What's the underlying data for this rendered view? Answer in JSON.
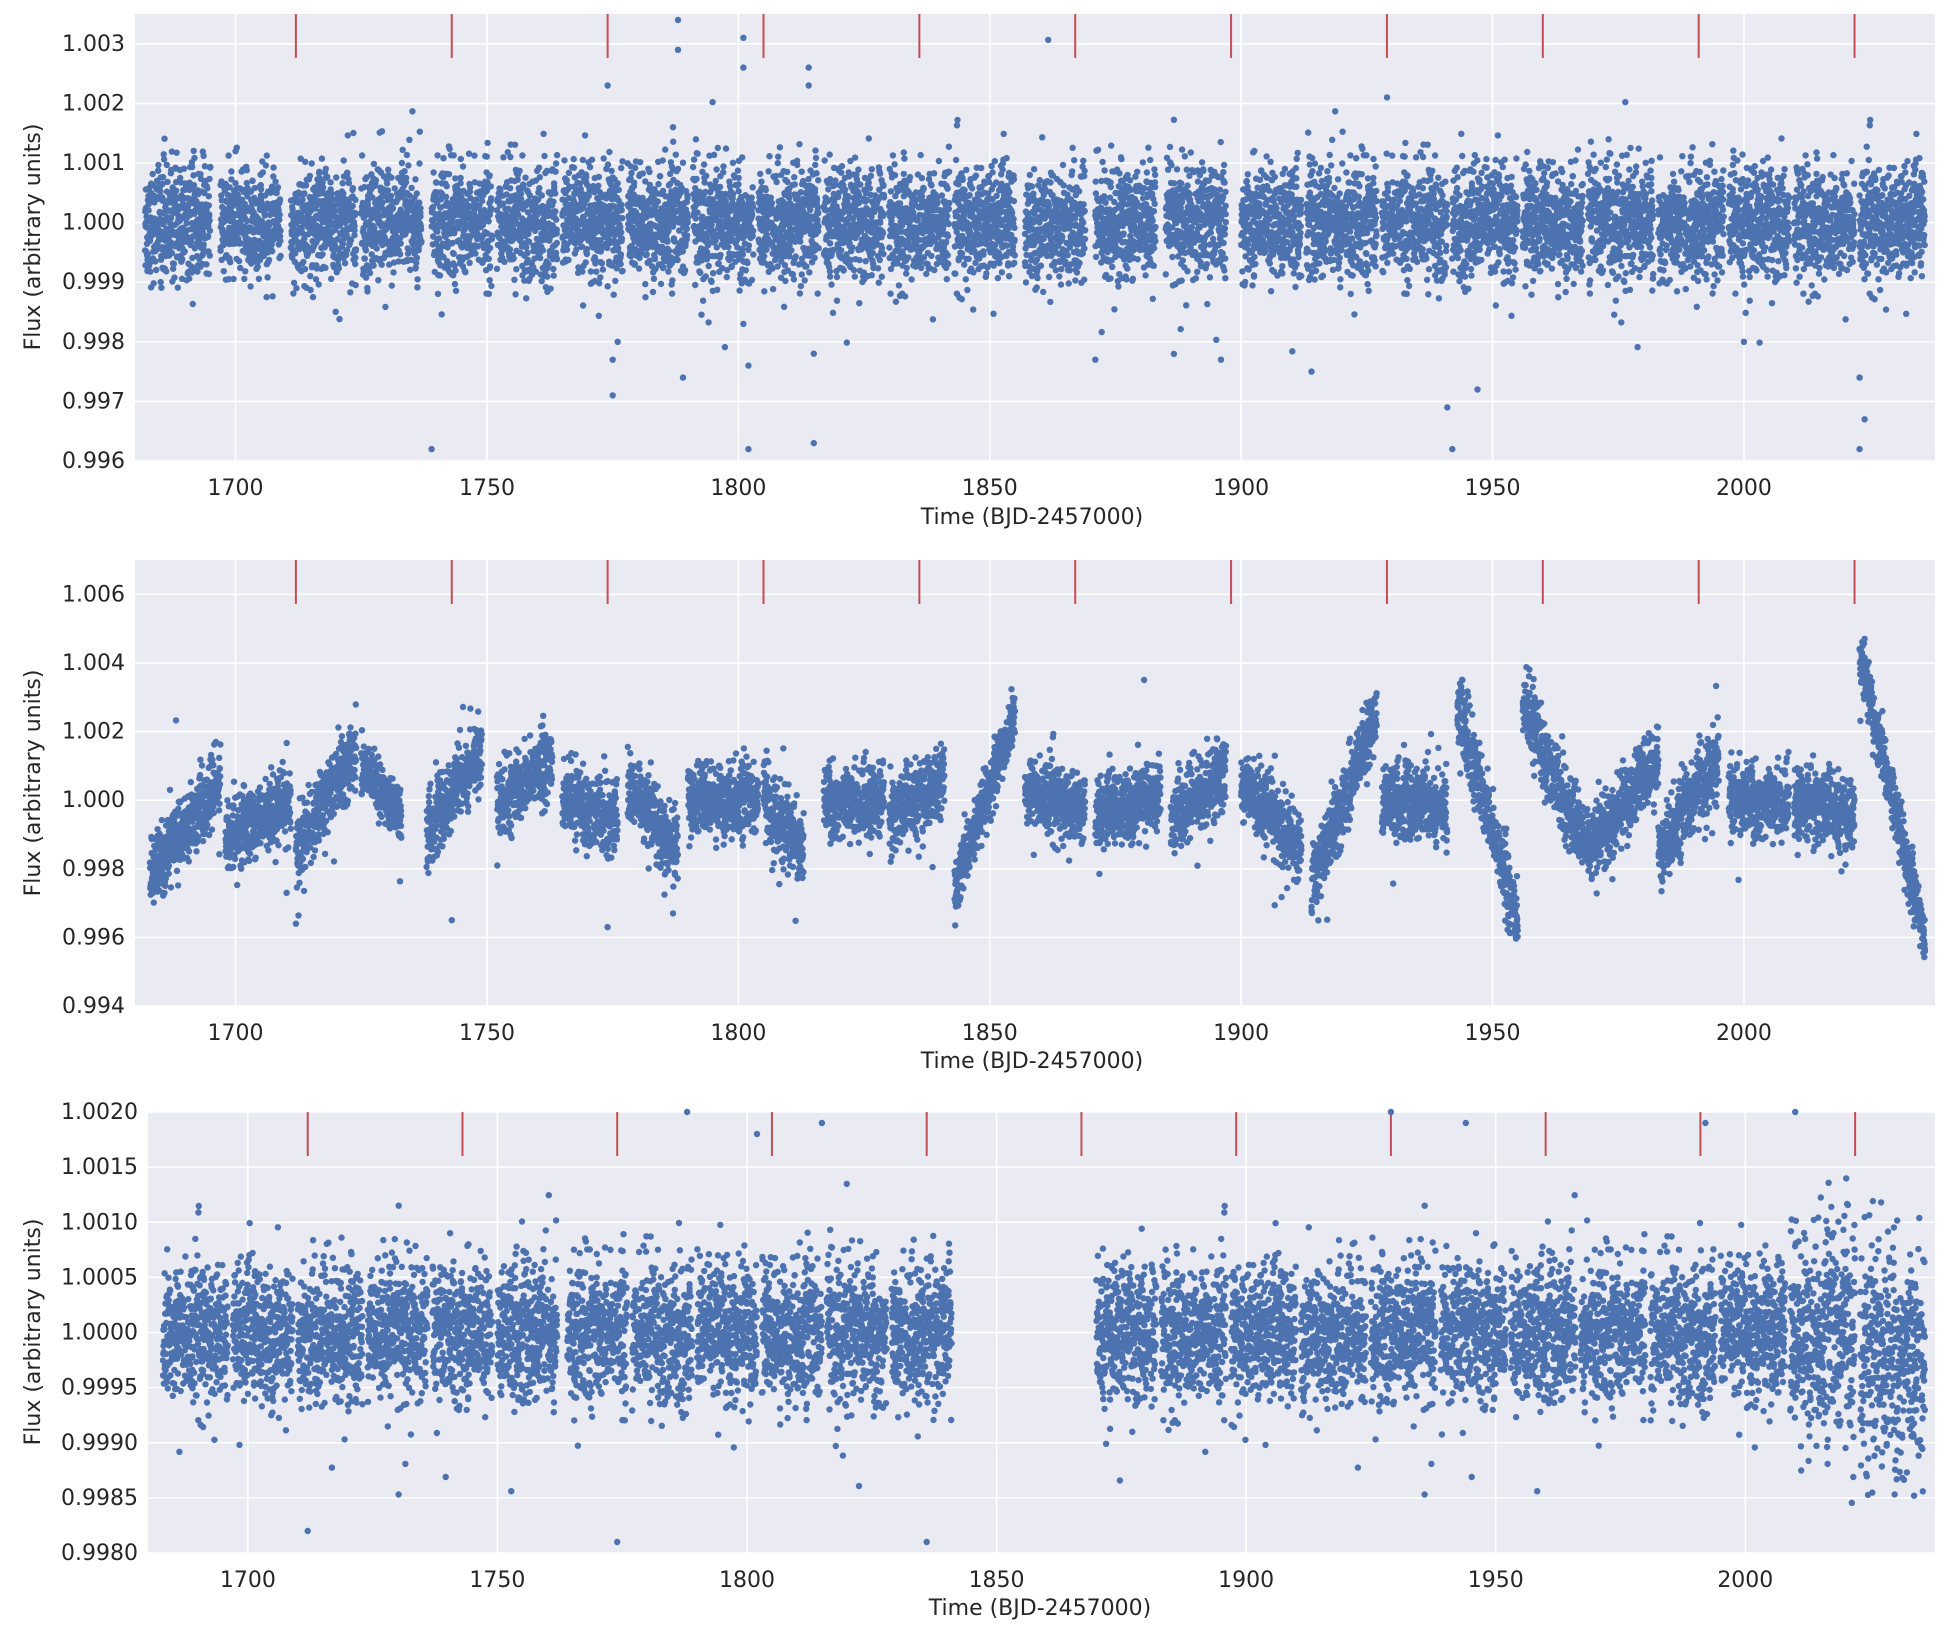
{
  "chart_data": [
    {
      "type": "scatter",
      "xlabel": "Time (BJD-2457000)",
      "ylabel": "Flux (arbitrary units)",
      "xlim": [
        1680,
        2038
      ],
      "ylim": [
        0.996,
        1.0035
      ],
      "xticks": [
        "1700",
        "1750",
        "1800",
        "1850",
        "1900",
        "1950",
        "2000"
      ],
      "yticks": [
        "0.996",
        "0.997",
        "0.998",
        "0.999",
        "1.000",
        "1.001",
        "1.002",
        "1.003"
      ],
      "grid": true,
      "transit_markers": [
        1712,
        1743,
        1774,
        1805,
        1836,
        1867,
        1898,
        1929,
        1960,
        1991,
        2022
      ],
      "segments": [
        {
          "start": 1682,
          "end": 1695,
          "center": 1.0,
          "spread": 0.00045
        },
        {
          "start": 1697,
          "end": 1709,
          "center": 1.0,
          "spread": 0.00045
        },
        {
          "start": 1711,
          "end": 1724,
          "center": 1.0,
          "spread": 0.00045
        },
        {
          "start": 1725,
          "end": 1737,
          "center": 1.0,
          "spread": 0.00045
        },
        {
          "start": 1739,
          "end": 1751,
          "center": 1.0,
          "spread": 0.00045
        },
        {
          "start": 1752,
          "end": 1764,
          "center": 1.0,
          "spread": 0.00045
        },
        {
          "start": 1765,
          "end": 1777,
          "center": 1.0,
          "spread": 0.00045
        },
        {
          "start": 1778,
          "end": 1790,
          "center": 1.0,
          "spread": 0.00045
        },
        {
          "start": 1791,
          "end": 1803,
          "center": 1.0,
          "spread": 0.00045
        },
        {
          "start": 1804,
          "end": 1816,
          "center": 1.0,
          "spread": 0.00045
        },
        {
          "start": 1817,
          "end": 1829,
          "center": 1.0,
          "spread": 0.00045
        },
        {
          "start": 1830,
          "end": 1842,
          "center": 1.0,
          "spread": 0.00045
        },
        {
          "start": 1843,
          "end": 1855,
          "center": 1.0,
          "spread": 0.00045
        },
        {
          "start": 1857,
          "end": 1869,
          "center": 1.0,
          "spread": 0.00045
        },
        {
          "start": 1871,
          "end": 1883,
          "center": 1.0,
          "spread": 0.00045
        },
        {
          "start": 1885,
          "end": 1897,
          "center": 1.0,
          "spread": 0.00045
        },
        {
          "start": 1900,
          "end": 1912,
          "center": 1.0,
          "spread": 0.00045
        },
        {
          "start": 1913,
          "end": 1927,
          "center": 1.0,
          "spread": 0.00045
        },
        {
          "start": 1928,
          "end": 1941,
          "center": 1.0,
          "spread": 0.00045
        },
        {
          "start": 1942,
          "end": 1955,
          "center": 1.0,
          "spread": 0.00045
        },
        {
          "start": 1956,
          "end": 1968,
          "center": 1.0,
          "spread": 0.00045
        },
        {
          "start": 1969,
          "end": 1982,
          "center": 1.0,
          "spread": 0.00045
        },
        {
          "start": 1983,
          "end": 1996,
          "center": 1.0,
          "spread": 0.00045
        },
        {
          "start": 1997,
          "end": 2009,
          "center": 1.0,
          "spread": 0.00045
        },
        {
          "start": 2010,
          "end": 2022,
          "center": 1.0,
          "spread": 0.00045
        },
        {
          "start": 2023,
          "end": 2036,
          "center": 1.0,
          "spread": 0.00045
        }
      ],
      "outliers": [
        [
          1739,
          0.9962
        ],
        [
          1774,
          1.0023
        ],
        [
          1775,
          0.9971
        ],
        [
          1775,
          0.9977
        ],
        [
          1776,
          0.998
        ],
        [
          1788,
          1.0034
        ],
        [
          1788,
          1.0029
        ],
        [
          1789,
          0.9974
        ],
        [
          1787,
          1.0016
        ],
        [
          1801,
          1.0031
        ],
        [
          1801,
          1.0026
        ],
        [
          1802,
          0.9962
        ],
        [
          1802,
          0.9976
        ],
        [
          1801,
          0.9983
        ],
        [
          1814,
          1.0026
        ],
        [
          1814,
          1.0023
        ],
        [
          1815,
          0.9963
        ],
        [
          1815,
          0.9978
        ],
        [
          1929,
          1.0021
        ],
        [
          1941,
          0.9969
        ],
        [
          1942,
          0.9962
        ],
        [
          1947,
          0.9972
        ],
        [
          2023,
          0.9974
        ],
        [
          2024,
          0.9967
        ],
        [
          2023,
          0.9962
        ],
        [
          2000,
          0.998
        ],
        [
          1871,
          0.9977
        ],
        [
          1896,
          0.9977
        ],
        [
          1914,
          0.9975
        ]
      ]
    },
    {
      "type": "scatter",
      "xlabel": "Time (BJD-2457000)",
      "ylabel": "Flux (arbitrary units)",
      "xlim": [
        1680,
        2038
      ],
      "ylim": [
        0.994,
        1.007
      ],
      "xticks": [
        "1700",
        "1750",
        "1800",
        "1850",
        "1900",
        "1950",
        "2000"
      ],
      "yticks": [
        "0.994",
        "0.996",
        "0.998",
        "1.000",
        "1.002",
        "1.004",
        "1.006"
      ],
      "grid": true,
      "transit_markers": [
        1712,
        1743,
        1774,
        1805,
        1836,
        1867,
        1898,
        1929,
        1960,
        1991,
        2022
      ],
      "segments": [
        {
          "start": 1683,
          "end": 1697,
          "y_start": 0.998,
          "y_end": 1.0005,
          "spread": 0.0005
        },
        {
          "start": 1698,
          "end": 1711,
          "y_start": 0.999,
          "y_end": 0.9998,
          "spread": 0.0005
        },
        {
          "start": 1712,
          "end": 1724,
          "y_start": 0.9985,
          "y_end": 1.0015,
          "spread": 0.0005
        },
        {
          "start": 1725,
          "end": 1733,
          "y_start": 1.001,
          "y_end": 0.9995,
          "spread": 0.0004
        },
        {
          "start": 1738,
          "end": 1749,
          "y_start": 0.999,
          "y_end": 1.0015,
          "spread": 0.0005
        },
        {
          "start": 1752,
          "end": 1763,
          "y_start": 0.9998,
          "y_end": 1.0012,
          "spread": 0.0005
        },
        {
          "start": 1765,
          "end": 1776,
          "y_start": 1.0,
          "y_end": 0.9995,
          "spread": 0.0005
        },
        {
          "start": 1778,
          "end": 1788,
          "y_start": 1.0003,
          "y_end": 0.9985,
          "spread": 0.0005
        },
        {
          "start": 1790,
          "end": 1804,
          "y_start": 1.0,
          "y_end": 1.0,
          "spread": 0.0005
        },
        {
          "start": 1805,
          "end": 1813,
          "y_start": 1.0,
          "y_end": 0.9985,
          "spread": 0.0005
        },
        {
          "start": 1817,
          "end": 1829,
          "y_start": 1.0,
          "y_end": 1.0,
          "spread": 0.0005
        },
        {
          "start": 1830,
          "end": 1841,
          "y_start": 0.9995,
          "y_end": 1.0005,
          "spread": 0.0005
        },
        {
          "start": 1843,
          "end": 1855,
          "y_start": 0.9975,
          "y_end": 1.0025,
          "spread": 0.0004
        },
        {
          "start": 1857,
          "end": 1869,
          "y_start": 1.0003,
          "y_end": 0.9997,
          "spread": 0.0005
        },
        {
          "start": 1871,
          "end": 1884,
          "y_start": 0.9995,
          "y_end": 1.0003,
          "spread": 0.0005
        },
        {
          "start": 1886,
          "end": 1897,
          "y_start": 0.9995,
          "y_end": 1.0008,
          "spread": 0.0005
        },
        {
          "start": 1900,
          "end": 1912,
          "y_start": 1.0005,
          "y_end": 0.9985,
          "spread": 0.0005
        },
        {
          "start": 1914,
          "end": 1927,
          "y_start": 0.9975,
          "y_end": 1.0025,
          "spread": 0.0005
        },
        {
          "start": 1928,
          "end": 1941,
          "y_start": 1.0,
          "y_end": 0.9998,
          "spread": 0.0005
        },
        {
          "start": 1943,
          "end": 1955,
          "y_start": 1.0028,
          "y_end": 0.9965,
          "spread": 0.0005
        },
        {
          "start": 1956,
          "end": 1969,
          "y_start": 1.0028,
          "y_end": 0.9985,
          "spread": 0.0005
        },
        {
          "start": 1969,
          "end": 1983,
          "y_start": 0.9985,
          "y_end": 1.0012,
          "spread": 0.0005
        },
        {
          "start": 1983,
          "end": 1995,
          "y_start": 0.9985,
          "y_end": 1.0012,
          "spread": 0.0005
        },
        {
          "start": 1997,
          "end": 2009,
          "y_start": 1.0,
          "y_end": 1.0,
          "spread": 0.0005
        },
        {
          "start": 2010,
          "end": 2022,
          "y_start": 1.0,
          "y_end": 0.9995,
          "spread": 0.0005
        },
        {
          "start": 2023,
          "end": 2036,
          "y_start": 1.0042,
          "y_end": 0.996,
          "spread": 0.0004
        }
      ],
      "outliers": [
        [
          1712,
          0.9964
        ],
        [
          1743,
          0.9965
        ],
        [
          1774,
          0.9963
        ],
        [
          1787,
          0.9967
        ],
        [
          1855,
          1.0026
        ],
        [
          2024,
          1.0047
        ],
        [
          2036,
          0.9956
        ],
        [
          1955,
          0.9962
        ],
        [
          1944,
          1.0035
        ],
        [
          1958,
          1.0033
        ]
      ]
    },
    {
      "type": "scatter",
      "xlabel": "Time (BJD-2457000)",
      "ylabel": "Flux (arbitrary units)",
      "xlim": [
        1680,
        2038
      ],
      "ylim": [
        0.998,
        1.002
      ],
      "xticks": [
        "1700",
        "1750",
        "1800",
        "1850",
        "1900",
        "1950",
        "2000"
      ],
      "yticks": [
        "0.9980",
        "0.9985",
        "0.9990",
        "0.9995",
        "1.0000",
        "1.0005",
        "1.0010",
        "1.0015",
        "1.0020"
      ],
      "grid": true,
      "transit_markers": [
        1712,
        1743,
        1774,
        1805,
        1836,
        1867,
        1898,
        1929,
        1960,
        1991,
        2022
      ],
      "segments": [
        {
          "start": 1683,
          "end": 1696,
          "center": 1.0,
          "spread": 0.0003
        },
        {
          "start": 1697,
          "end": 1709,
          "center": 1.0,
          "spread": 0.0003
        },
        {
          "start": 1710,
          "end": 1723,
          "center": 1.0,
          "spread": 0.0003
        },
        {
          "start": 1724,
          "end": 1736,
          "center": 1.0,
          "spread": 0.0003
        },
        {
          "start": 1737,
          "end": 1749,
          "center": 1.0,
          "spread": 0.0003
        },
        {
          "start": 1750,
          "end": 1762,
          "center": 1.0,
          "spread": 0.0003
        },
        {
          "start": 1764,
          "end": 1776,
          "center": 1.0,
          "spread": 0.0003
        },
        {
          "start": 1777,
          "end": 1789,
          "center": 1.0,
          "spread": 0.0003
        },
        {
          "start": 1790,
          "end": 1802,
          "center": 1.0,
          "spread": 0.0003
        },
        {
          "start": 1803,
          "end": 1815,
          "center": 1.0,
          "spread": 0.0003
        },
        {
          "start": 1816,
          "end": 1828,
          "center": 1.0,
          "spread": 0.0003
        },
        {
          "start": 1829,
          "end": 1841,
          "center": 1.0,
          "spread": 0.0003
        },
        {
          "start": 1870,
          "end": 1882,
          "center": 1.0,
          "spread": 0.0003
        },
        {
          "start": 1883,
          "end": 1896,
          "center": 1.0,
          "spread": 0.0003
        },
        {
          "start": 1897,
          "end": 1910,
          "center": 1.0,
          "spread": 0.0003
        },
        {
          "start": 1911,
          "end": 1924,
          "center": 1.0,
          "spread": 0.0003
        },
        {
          "start": 1925,
          "end": 1938,
          "center": 1.0,
          "spread": 0.0003
        },
        {
          "start": 1939,
          "end": 1952,
          "center": 1.0,
          "spread": 0.0003
        },
        {
          "start": 1953,
          "end": 1966,
          "center": 1.0,
          "spread": 0.0003
        },
        {
          "start": 1967,
          "end": 1980,
          "center": 1.0,
          "spread": 0.0003
        },
        {
          "start": 1981,
          "end": 1994,
          "center": 1.0,
          "spread": 0.0003
        },
        {
          "start": 1995,
          "end": 2008,
          "center": 1.0,
          "spread": 0.0003
        },
        {
          "start": 2009,
          "end": 2022,
          "center": 1.0,
          "spread": 0.00045
        },
        {
          "start": 2023,
          "end": 2036,
          "center": 0.9998,
          "spread": 0.0005
        }
      ],
      "outliers": [
        [
          1712,
          0.9982
        ],
        [
          1774,
          0.9981
        ],
        [
          1788,
          1.002
        ],
        [
          1802,
          1.0018
        ],
        [
          1815,
          1.0019
        ],
        [
          1836,
          0.9981
        ],
        [
          1929,
          1.002
        ],
        [
          1944,
          1.0019
        ],
        [
          1992,
          1.0019
        ],
        [
          2010,
          1.002
        ]
      ]
    }
  ]
}
